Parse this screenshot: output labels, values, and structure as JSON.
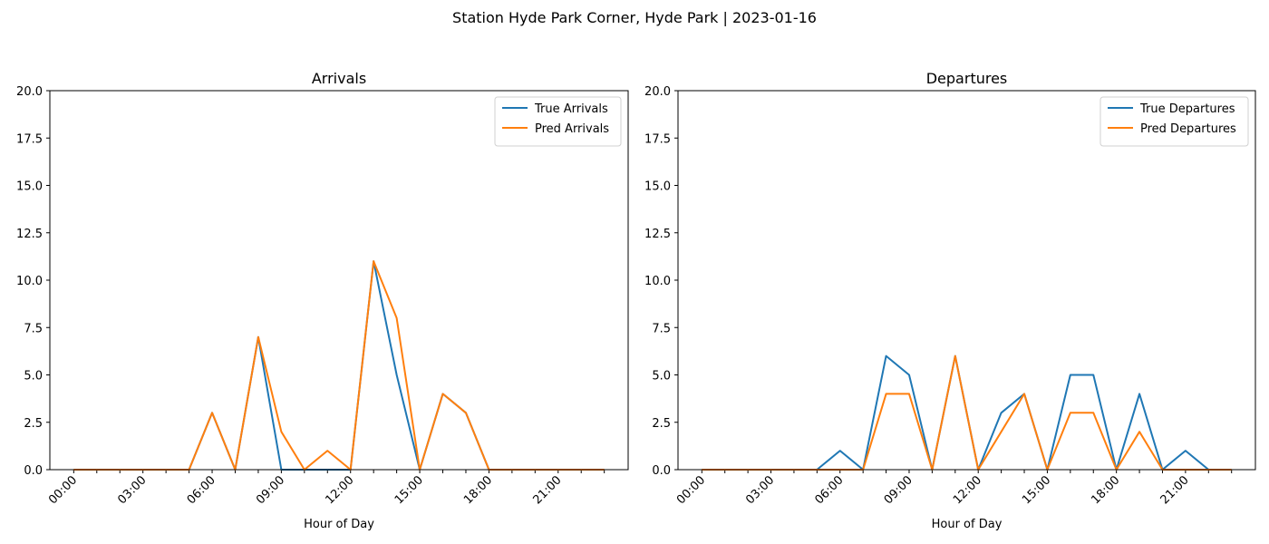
{
  "figure": {
    "suptitle": "Station Hyde Park Corner, Hyde Park | 2023-01-16"
  },
  "chart_data": [
    {
      "type": "line",
      "title": "Arrivals",
      "xlabel": "Hour of Day",
      "ylabel": "",
      "ylim": [
        0,
        20
      ],
      "y_ticks": [
        "0.0",
        "2.5",
        "5.0",
        "7.5",
        "10.0",
        "12.5",
        "15.0",
        "17.5",
        "20.0"
      ],
      "x": [
        0,
        1,
        2,
        3,
        4,
        5,
        6,
        7,
        8,
        9,
        10,
        11,
        12,
        13,
        14,
        15,
        16,
        17,
        18,
        19,
        20,
        21,
        22,
        23
      ],
      "x_tick_labels": [
        "00:00",
        "03:00",
        "06:00",
        "09:00",
        "12:00",
        "15:00",
        "18:00",
        "21:00"
      ],
      "legend_position": "upper-right",
      "series": [
        {
          "name": "True Arrivals",
          "color": "#1f77b4",
          "values": [
            0,
            0,
            0,
            0,
            0,
            0,
            3,
            0,
            7,
            0,
            0,
            0,
            0,
            11,
            5,
            0,
            4,
            3,
            0,
            0,
            0,
            0,
            0,
            0
          ]
        },
        {
          "name": "Pred Arrivals",
          "color": "#ff7f0e",
          "values": [
            0,
            0,
            0,
            0,
            0,
            0,
            3,
            0,
            7,
            2,
            0,
            1,
            0,
            11,
            8,
            0,
            4,
            3,
            0,
            0,
            0,
            0,
            0,
            0
          ]
        }
      ]
    },
    {
      "type": "line",
      "title": "Departures",
      "xlabel": "Hour of Day",
      "ylabel": "",
      "ylim": [
        0,
        20
      ],
      "y_ticks": [
        "0.0",
        "2.5",
        "5.0",
        "7.5",
        "10.0",
        "12.5",
        "15.0",
        "17.5",
        "20.0"
      ],
      "x": [
        0,
        1,
        2,
        3,
        4,
        5,
        6,
        7,
        8,
        9,
        10,
        11,
        12,
        13,
        14,
        15,
        16,
        17,
        18,
        19,
        20,
        21,
        22,
        23
      ],
      "x_tick_labels": [
        "00:00",
        "03:00",
        "06:00",
        "09:00",
        "12:00",
        "15:00",
        "18:00",
        "21:00"
      ],
      "legend_position": "upper-right",
      "series": [
        {
          "name": "True Departures",
          "color": "#1f77b4",
          "values": [
            0,
            0,
            0,
            0,
            0,
            0,
            1,
            0,
            6,
            5,
            0,
            6,
            0,
            3,
            4,
            0,
            5,
            5,
            0,
            4,
            0,
            1,
            0,
            0
          ]
        },
        {
          "name": "Pred Departures",
          "color": "#ff7f0e",
          "values": [
            0,
            0,
            0,
            0,
            0,
            0,
            0,
            0,
            4,
            4,
            0,
            6,
            0,
            2,
            4,
            0,
            3,
            3,
            0,
            2,
            0,
            0,
            0,
            0
          ]
        }
      ]
    }
  ]
}
